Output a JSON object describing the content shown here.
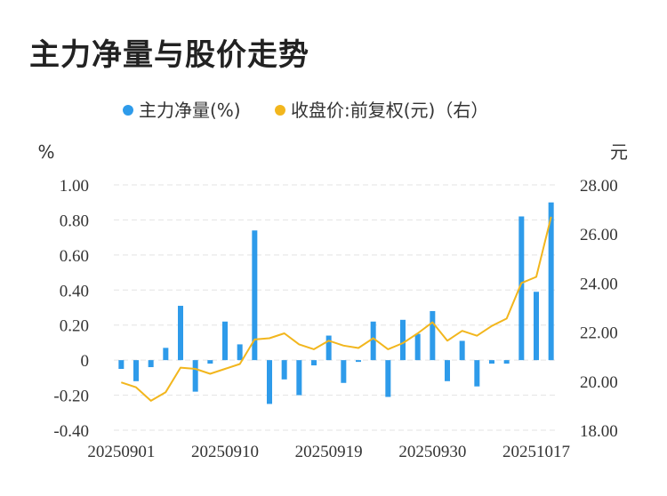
{
  "chart_data": {
    "type": "bar+line",
    "title": "主力净量与股价走势",
    "legend": [
      {
        "label": "主力净量(%)",
        "color": "#2E9BEA"
      },
      {
        "label": "收盘价:前复权(元)（右）",
        "color": "#F2B61D"
      }
    ],
    "left_unit": "%",
    "right_unit": "元",
    "left_ylim": [
      -0.4,
      1.0
    ],
    "right_ylim": [
      18.0,
      28.0
    ],
    "left_ticks": [
      "1.00",
      "0.80",
      "0.60",
      "0.40",
      "0.20",
      "0",
      "-0.20",
      "-0.40"
    ],
    "right_ticks": [
      "28.00",
      "26.00",
      "24.00",
      "22.00",
      "20.00",
      "18.00"
    ],
    "x_tick_labels": [
      "20250901",
      "20250910",
      "20250919",
      "20250930",
      "20251017"
    ],
    "categories": [
      "20250901",
      "20250902",
      "20250903",
      "20250904",
      "20250905",
      "20250908",
      "20250909",
      "20250910",
      "20250911",
      "20250912",
      "20250915",
      "20250916",
      "20250917",
      "20250918",
      "20250919",
      "20250922",
      "20250923",
      "20250924",
      "20250925",
      "20250926",
      "20250929",
      "20250930",
      "20251009",
      "20251010",
      "20251013",
      "20251014",
      "20251015",
      "20251016",
      "20251017",
      "20251020"
    ],
    "series": [
      {
        "name": "主力净量(%)",
        "type": "bar",
        "axis": "left",
        "values": [
          -0.05,
          -0.12,
          -0.04,
          0.07,
          0.31,
          -0.18,
          -0.02,
          0.22,
          0.09,
          0.74,
          -0.25,
          -0.11,
          -0.2,
          -0.03,
          0.14,
          -0.13,
          -0.01,
          0.22,
          -0.21,
          0.23,
          0.15,
          0.28,
          -0.12,
          0.11,
          -0.15,
          -0.02,
          -0.02,
          0.82,
          0.39,
          0.9
        ]
      },
      {
        "name": "收盘价:前复权(元)（右）",
        "type": "line",
        "axis": "right",
        "values": [
          19.95,
          19.75,
          19.2,
          19.55,
          20.55,
          20.5,
          20.3,
          20.5,
          20.7,
          21.7,
          21.75,
          21.95,
          21.5,
          21.3,
          21.65,
          21.45,
          21.35,
          21.75,
          21.3,
          21.55,
          21.95,
          22.4,
          21.65,
          22.05,
          21.85,
          22.25,
          22.55,
          24.0,
          24.25,
          26.7
        ]
      }
    ],
    "grid": "horizontal-dashed"
  }
}
